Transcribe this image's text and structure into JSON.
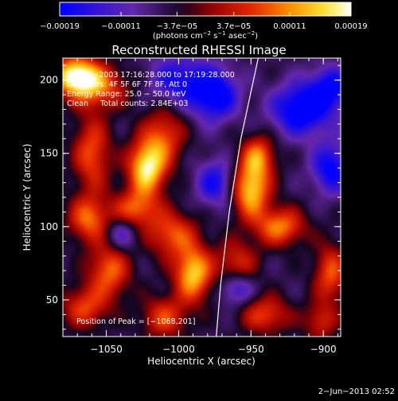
{
  "chart_data": {
    "type": "heatmap",
    "title": "Reconstructed RHESSI Image",
    "xlabel": "Heliocentric X (arcsec)",
    "ylabel": "Heliocentric Y (arcsec)",
    "xlim": [
      -1080,
      -888
    ],
    "ylim": [
      25,
      215
    ],
    "x_ticks": [
      -1050,
      -1000,
      -950,
      -900
    ],
    "x_tick_labels": [
      "−1050",
      "−1000",
      "−950",
      "−900"
    ],
    "y_ticks": [
      50,
      100,
      150,
      200
    ],
    "y_tick_labels": [
      "50",
      "100",
      "150",
      "200"
    ],
    "colorbar": {
      "range": [
        -0.00019,
        0.00019
      ],
      "ticks": [
        -0.00019,
        -0.00011,
        -3.7e-05,
        3.7e-05,
        0.00011,
        0.00019
      ],
      "tick_labels": [
        "−0.00019",
        "−0.00011",
        "−3.7e−05",
        "3.7e−05",
        "0.00011",
        "0.00019"
      ],
      "units_main": "(photons cm",
      "units_sup1": "−2",
      "units_mid": " s",
      "units_sup2": "−1",
      "units_mid2": " asec",
      "units_sup3": "−2",
      "units_end": ")",
      "colormap": "blue-purple-red-yellow-white"
    },
    "info_lines": [
      "2−Dec−2003 17:16:28.000 to 17:19:28.000",
      "Detectors: 4F 5F 6F 7F 8F, Att 0",
      "Energy Range: 25.0 − 50.0 keV",
      "Clean     Total counts: 2.84E+03"
    ],
    "peak_text": "Position of Peak = [−1068,201]",
    "peak_position": [
      -1068,
      201
    ],
    "limb_curve": [
      [
        -945,
        215
      ],
      [
        -957,
        160
      ],
      [
        -965,
        110
      ],
      [
        -971,
        60
      ],
      [
        -974,
        25
      ]
    ],
    "emission_sources": [
      {
        "x": -1071,
        "y": 203,
        "a": 1.0,
        "sx": 11,
        "sy": 9
      },
      {
        "x": -1055,
        "y": 195,
        "a": 0.55,
        "sx": 14,
        "sy": 10
      },
      {
        "x": -1022,
        "y": 140,
        "a": 0.95,
        "sx": 9,
        "sy": 13
      },
      {
        "x": -1010,
        "y": 162,
        "a": 0.5,
        "sx": 10,
        "sy": 14
      },
      {
        "x": -1030,
        "y": 112,
        "a": 0.55,
        "sx": 11,
        "sy": 9
      },
      {
        "x": -1060,
        "y": 150,
        "a": 0.55,
        "sx": 9,
        "sy": 18
      },
      {
        "x": -1062,
        "y": 105,
        "a": 0.6,
        "sx": 10,
        "sy": 11
      },
      {
        "x": -1048,
        "y": 70,
        "a": 0.6,
        "sx": 10,
        "sy": 13
      },
      {
        "x": -1065,
        "y": 45,
        "a": 0.5,
        "sx": 11,
        "sy": 10
      },
      {
        "x": -1005,
        "y": 95,
        "a": 0.55,
        "sx": 12,
        "sy": 11
      },
      {
        "x": -990,
        "y": 68,
        "a": 0.85,
        "sx": 9,
        "sy": 13
      },
      {
        "x": -1010,
        "y": 38,
        "a": 0.5,
        "sx": 11,
        "sy": 10
      },
      {
        "x": -950,
        "y": 125,
        "a": 0.85,
        "sx": 9,
        "sy": 13
      },
      {
        "x": -945,
        "y": 148,
        "a": 0.6,
        "sx": 8,
        "sy": 10
      },
      {
        "x": -930,
        "y": 100,
        "a": 0.65,
        "sx": 12,
        "sy": 9
      },
      {
        "x": -960,
        "y": 75,
        "a": 0.45,
        "sx": 10,
        "sy": 11
      },
      {
        "x": -895,
        "y": 68,
        "a": 0.55,
        "sx": 8,
        "sy": 14
      },
      {
        "x": -940,
        "y": 40,
        "a": 0.5,
        "sx": 12,
        "sy": 9
      },
      {
        "x": -902,
        "y": 35,
        "a": 0.4,
        "sx": 8,
        "sy": 9
      },
      {
        "x": -1000,
        "y": 200,
        "a": -0.5,
        "sx": 14,
        "sy": 12
      },
      {
        "x": -975,
        "y": 190,
        "a": -0.7,
        "sx": 11,
        "sy": 12
      },
      {
        "x": -915,
        "y": 180,
        "a": -0.75,
        "sx": 14,
        "sy": 12
      },
      {
        "x": -895,
        "y": 195,
        "a": -0.55,
        "sx": 10,
        "sy": 10
      },
      {
        "x": -895,
        "y": 140,
        "a": -0.6,
        "sx": 9,
        "sy": 12
      },
      {
        "x": -975,
        "y": 130,
        "a": -0.5,
        "sx": 9,
        "sy": 11
      },
      {
        "x": -1040,
        "y": 95,
        "a": -0.35,
        "sx": 8,
        "sy": 8
      },
      {
        "x": -960,
        "y": 58,
        "a": -0.45,
        "sx": 8,
        "sy": 8
      }
    ]
  },
  "footer": {
    "date_stamp": "2−Jun−2013 02:52"
  }
}
